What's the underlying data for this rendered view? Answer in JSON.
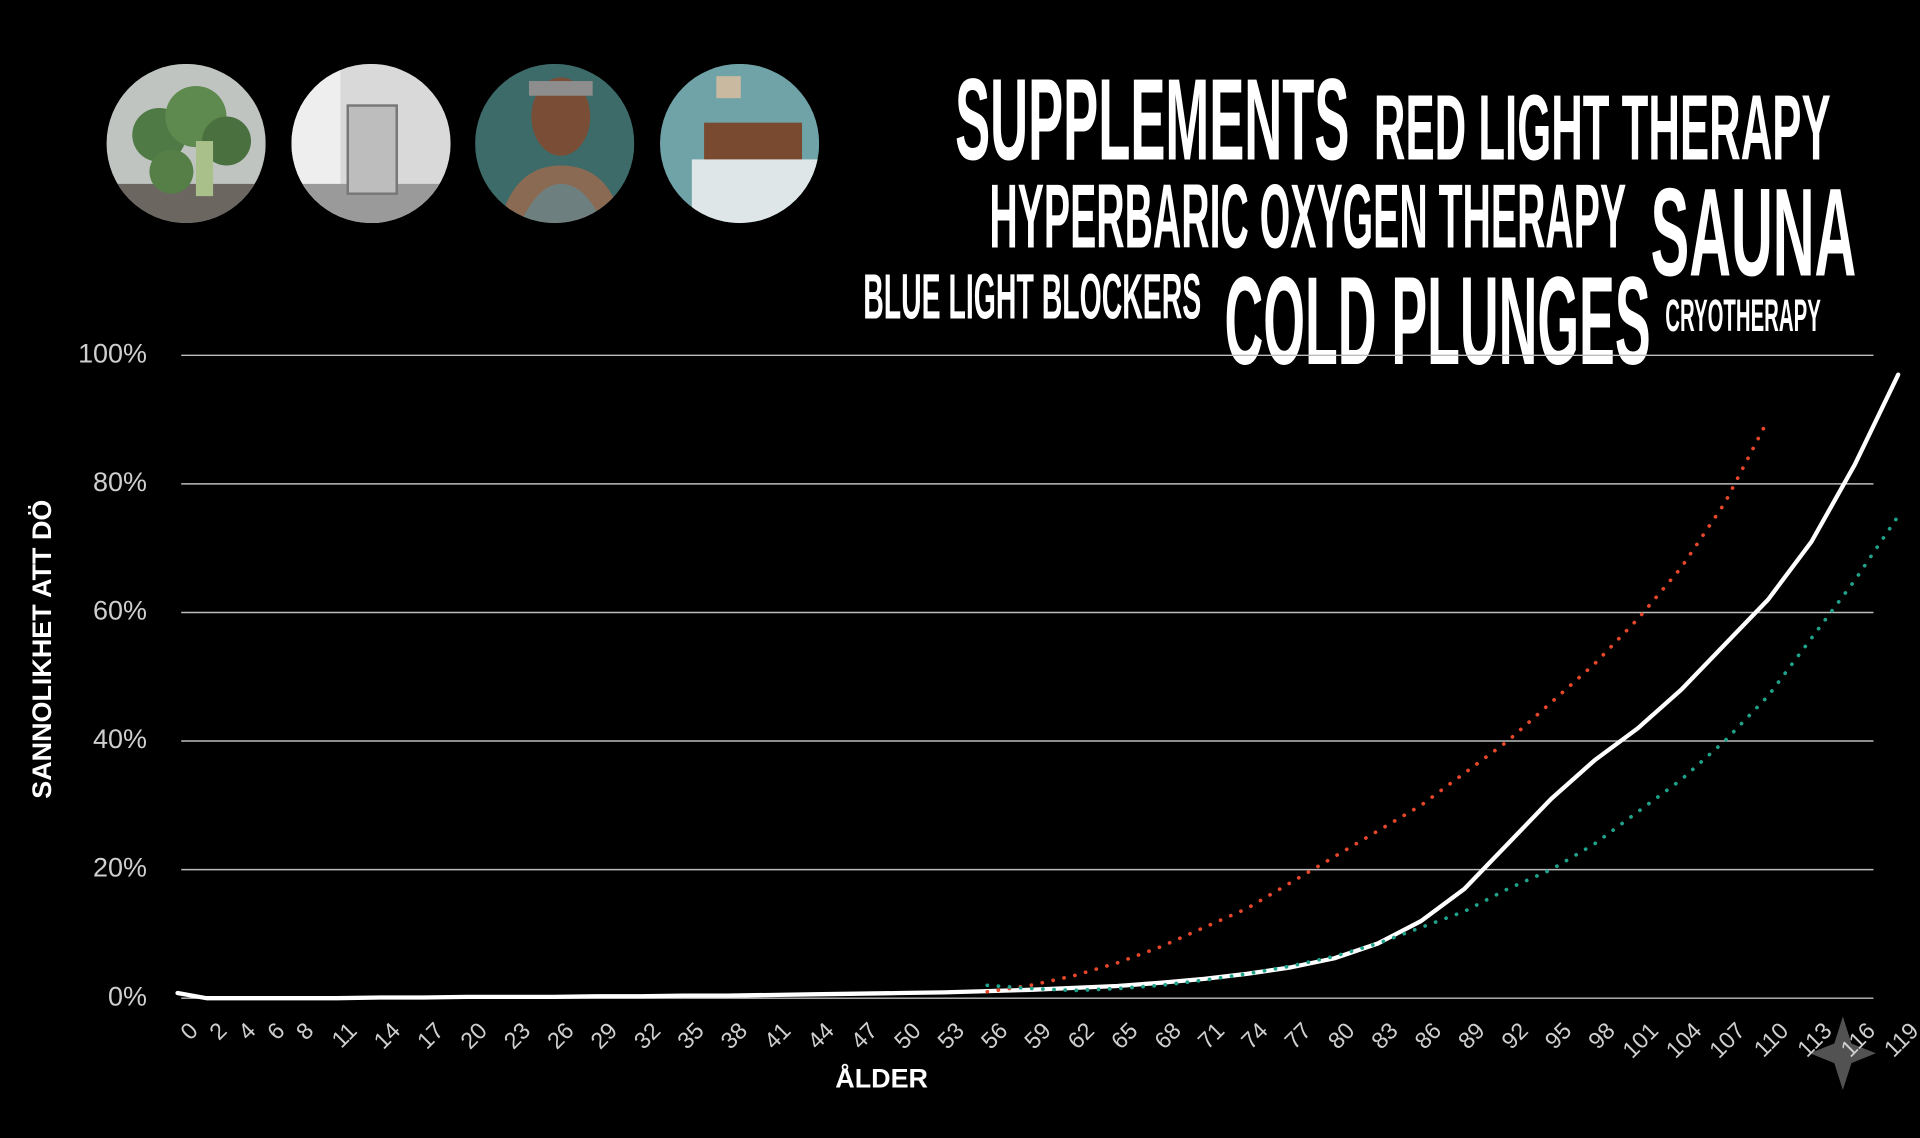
{
  "chart_data": {
    "type": "line",
    "y_label": "SANNOLIKHET ATT DÖ",
    "x_label": "ÅLDER",
    "annotations": [
      "SUPPLEMENTS",
      "RED LIGHT THERAPY",
      "HYPERBARIC OXYGEN THERAPY",
      "SAUNA",
      "BLUE LIGHT BLOCKERS",
      "COLD PLUNGES",
      "CRYOTHERAPY"
    ],
    "x": [
      0,
      2,
      4,
      6,
      8,
      11,
      14,
      17,
      20,
      23,
      26,
      29,
      32,
      35,
      38,
      41,
      44,
      47,
      50,
      53,
      56,
      59,
      62,
      65,
      68,
      71,
      74,
      77,
      80,
      83,
      86,
      89,
      92,
      95,
      98,
      101,
      104,
      107,
      110,
      113,
      116,
      119
    ],
    "xlim": [
      0,
      120
    ],
    "xticks": [
      0,
      2,
      4,
      6,
      8,
      11,
      14,
      17,
      20,
      23,
      26,
      29,
      32,
      35,
      38,
      41,
      44,
      47,
      50,
      53,
      56,
      59,
      62,
      65,
      68,
      71,
      74,
      77,
      80,
      83,
      86,
      89,
      92,
      95,
      98,
      101,
      104,
      107,
      110,
      113,
      116,
      119
    ],
    "ylim": [
      0,
      100
    ],
    "yticks": [
      {
        "value": 0,
        "label": "0%"
      },
      {
        "value": 20,
        "label": "20%"
      },
      {
        "value": 40,
        "label": "40%"
      },
      {
        "value": 60,
        "label": "60%"
      },
      {
        "value": 80,
        "label": "80%"
      },
      {
        "value": 100,
        "label": "100%"
      }
    ],
    "grid": true,
    "series": [
      {
        "color": "#ffffff",
        "style": "solid",
        "values": [
          0.8,
          0,
          0,
          0,
          0,
          0,
          0.1,
          0.1,
          0.2,
          0.2,
          0.2,
          0.3,
          0.3,
          0.4,
          0.4,
          0.5,
          0.6,
          0.7,
          0.8,
          0.9,
          1.1,
          1.3,
          1.6,
          1.9,
          2.4,
          3,
          3.8,
          4.8,
          6.2,
          8.5,
          12,
          17,
          24,
          31,
          37,
          42,
          48,
          55,
          62,
          71,
          83,
          97
        ]
      },
      {
        "color": "#e8472a",
        "style": "dotted",
        "values": [
          null,
          null,
          null,
          null,
          null,
          null,
          null,
          null,
          null,
          null,
          null,
          null,
          null,
          null,
          null,
          null,
          null,
          null,
          null,
          null,
          1,
          2,
          3.5,
          5.5,
          8,
          11,
          14,
          18,
          22,
          26,
          30,
          35,
          40,
          46,
          52,
          59,
          67,
          77,
          90,
          null,
          null,
          null
        ]
      },
      {
        "color": "#1fa38c",
        "style": "dotted",
        "values": [
          null,
          null,
          null,
          null,
          null,
          null,
          null,
          null,
          null,
          null,
          null,
          null,
          null,
          null,
          null,
          null,
          null,
          null,
          null,
          null,
          2,
          1.5,
          1.2,
          1.5,
          2,
          2.8,
          3.8,
          5,
          6.5,
          8.5,
          11,
          13.5,
          17,
          20,
          24,
          29,
          34,
          40,
          47,
          56,
          65,
          75
        ]
      }
    ]
  }
}
